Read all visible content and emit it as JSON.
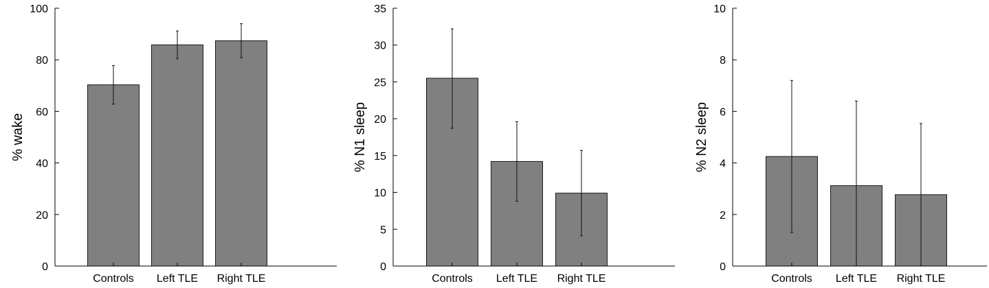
{
  "chart_data": [
    {
      "type": "bar",
      "categories": [
        "Controls",
        "Left TLE",
        "Right TLE"
      ],
      "series": [
        {
          "values": [
            70.3,
            85.8,
            87.4
          ],
          "error_low": [
            62.8,
            80.4,
            80.8
          ],
          "error_high": [
            77.8,
            91.2,
            94.0
          ]
        }
      ],
      "ylabel": "% wake",
      "xlabel": "",
      "ylim": [
        0,
        100
      ],
      "yticks": [
        0,
        20,
        40,
        60,
        80,
        100
      ],
      "bar_color": "#808080",
      "grid": false
    },
    {
      "type": "bar",
      "categories": [
        "Controls",
        "Left TLE",
        "Right TLE"
      ],
      "series": [
        {
          "values": [
            25.5,
            14.2,
            9.9
          ],
          "error_low": [
            18.7,
            8.8,
            4.1
          ],
          "error_high": [
            32.2,
            19.6,
            15.7
          ]
        }
      ],
      "ylabel": "% N1 sleep",
      "xlabel": "",
      "ylim": [
        0,
        35
      ],
      "yticks": [
        0,
        5,
        10,
        15,
        20,
        25,
        30,
        35
      ],
      "bar_color": "#808080",
      "grid": false
    },
    {
      "type": "bar",
      "categories": [
        "Controls",
        "Left TLE",
        "Right TLE"
      ],
      "series": [
        {
          "values": [
            4.25,
            3.12,
            2.77
          ],
          "error_low": [
            1.3,
            0,
            0
          ],
          "error_high": [
            7.2,
            6.4,
            5.53
          ]
        }
      ],
      "ylabel": "% N2 sleep",
      "xlabel": "",
      "ylim": [
        0,
        10
      ],
      "yticks": [
        0,
        2,
        4,
        6,
        8,
        10
      ],
      "bar_color": "#808080",
      "grid": false
    }
  ]
}
